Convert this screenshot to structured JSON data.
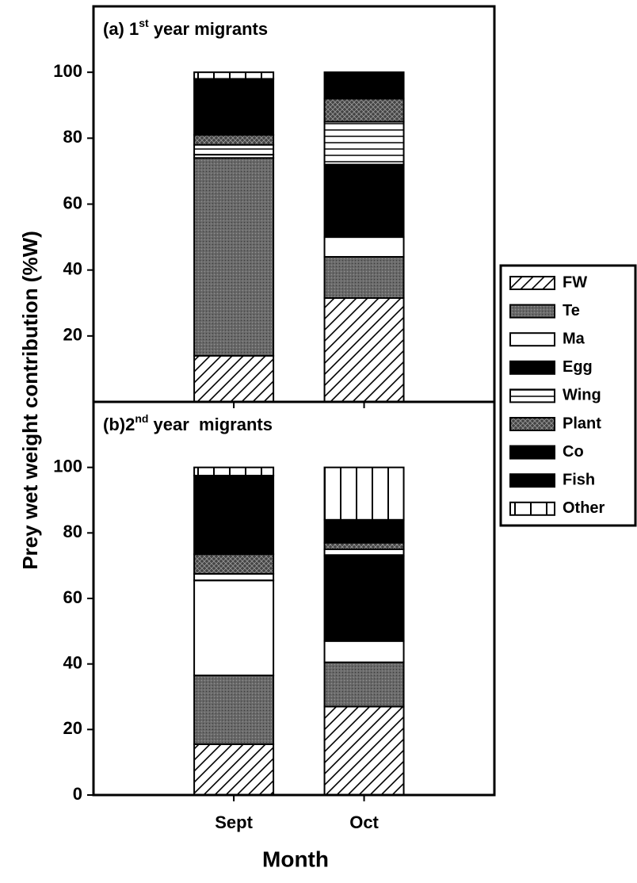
{
  "chart_data": [
    {
      "type": "bar",
      "stacked": true,
      "title": [
        "(a) 1",
        "st",
        " year migrants"
      ],
      "ylabel": "Prey wet weight contribution (%W)",
      "ylim": [
        0,
        120
      ],
      "yticks": [
        20,
        40,
        60,
        80,
        100
      ],
      "legend": "right",
      "series": [
        {
          "name": "FW",
          "color": "#000000",
          "pattern": "diagonal",
          "values": [
            14,
            31.5
          ]
        },
        {
          "name": "Te",
          "color": "#555555",
          "pattern": "stipple",
          "values": [
            60,
            12.5
          ]
        },
        {
          "name": "Ma",
          "color": "#ffffff",
          "pattern": "solid",
          "values": [
            1,
            6
          ]
        },
        {
          "name": "Egg",
          "color": "#000000",
          "pattern": "solid",
          "values": [
            0,
            22
          ]
        },
        {
          "name": "Wing",
          "color": "#ffffff",
          "pattern": "hline",
          "values": [
            3,
            13
          ]
        },
        {
          "name": "Plant",
          "color": "#444444",
          "pattern": "crosshatch",
          "values": [
            3,
            7
          ]
        },
        {
          "name": "Co",
          "color": "#000000",
          "pattern": "solid",
          "values": [
            0,
            0
          ]
        },
        {
          "name": "Fish",
          "color": "#000000",
          "pattern": "solid",
          "values": [
            17,
            8
          ]
        },
        {
          "name": "Other",
          "color": "#ffffff",
          "pattern": "vline",
          "values": [
            2,
            0
          ]
        }
      ]
    },
    {
      "type": "bar",
      "stacked": true,
      "title": [
        "(b)2",
        "nd",
        " year  migrants"
      ],
      "xlabel": "Month",
      "categories": [
        "Sept",
        "Oct"
      ],
      "ylim": [
        0,
        120
      ],
      "yticks": [
        0,
        20,
        40,
        60,
        80,
        100
      ],
      "series": [
        {
          "values": [
            15.5,
            27
          ]
        },
        {
          "values": [
            21,
            13.5
          ]
        },
        {
          "values": [
            29,
            6.5
          ]
        },
        {
          "values": [
            0,
            26
          ]
        },
        {
          "values": [
            2,
            2
          ]
        },
        {
          "values": [
            6,
            2
          ]
        },
        {
          "values": [
            0,
            0
          ]
        },
        {
          "values": [
            24,
            7
          ]
        },
        {
          "values": [
            2.5,
            16
          ]
        }
      ]
    }
  ]
}
